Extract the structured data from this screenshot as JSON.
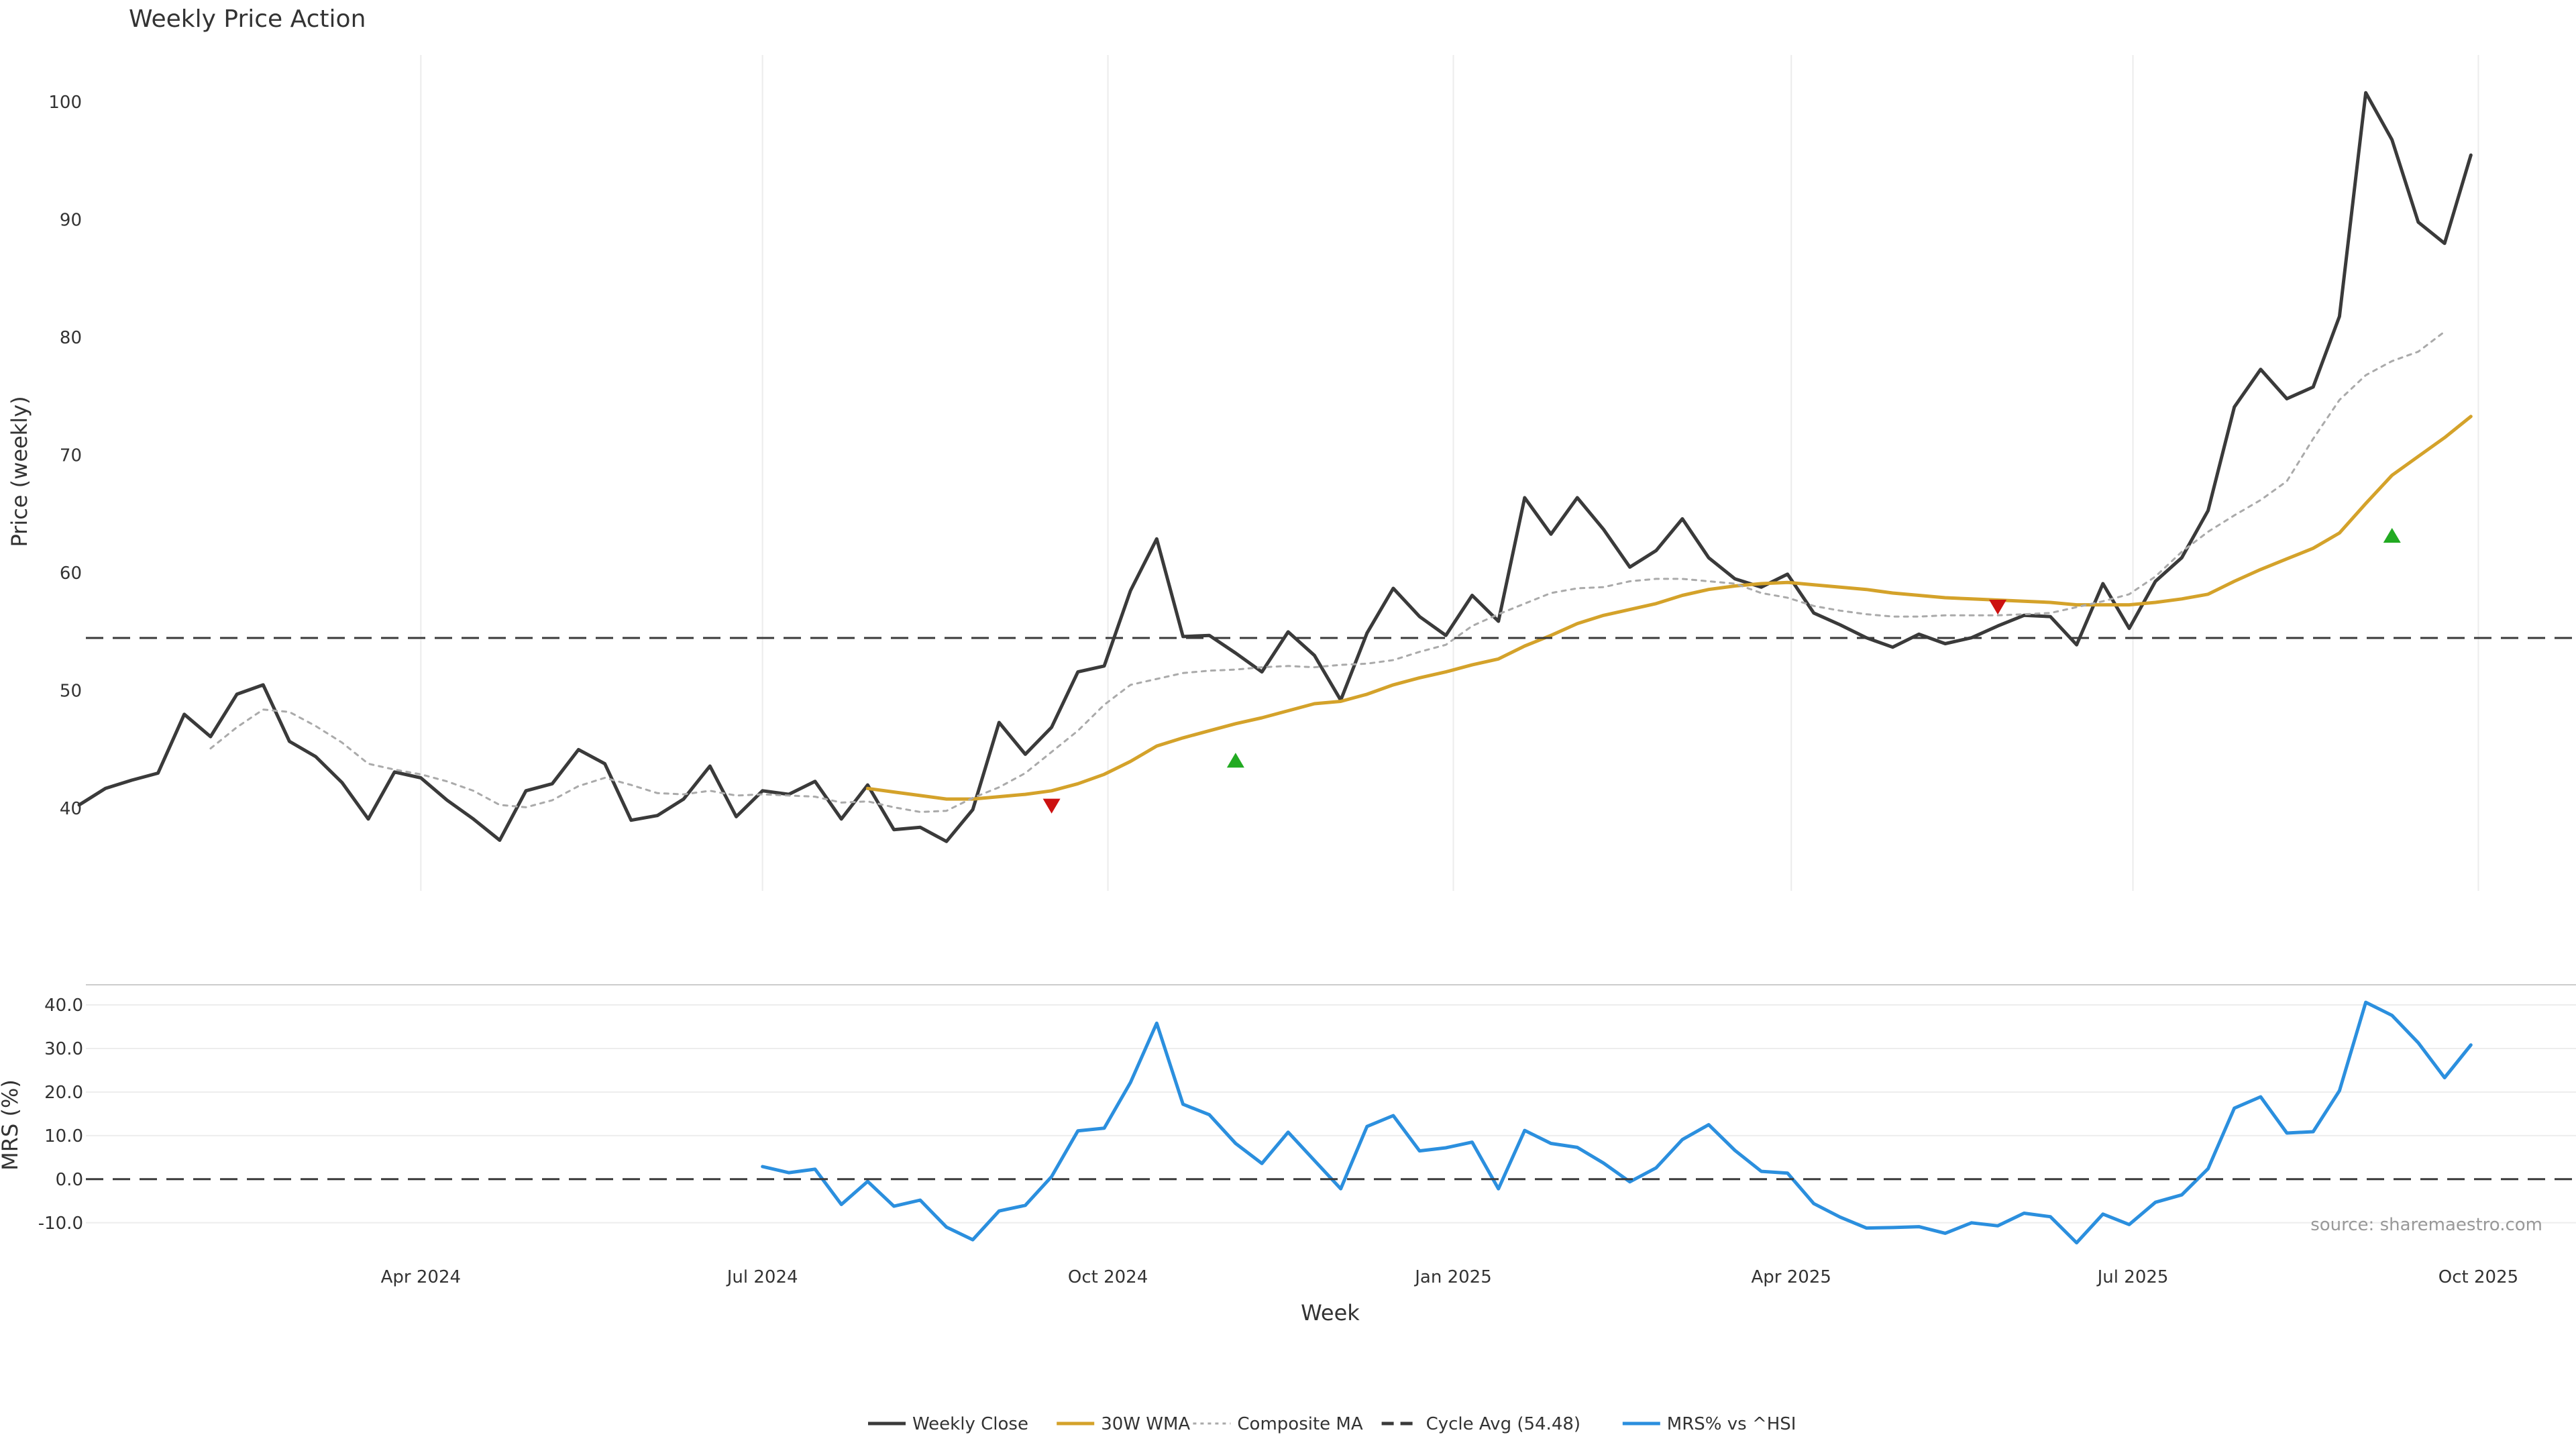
{
  "chart_data": [
    {
      "type": "line",
      "title": "Weekly Price Action",
      "ylabel": "Price (weekly)",
      "ylim": [
        33,
        104
      ],
      "yticks": [
        40,
        50,
        60,
        70,
        80,
        90,
        100
      ],
      "grid": "x",
      "x_start": "2024-01-01",
      "x_step_days": 7,
      "series": [
        {
          "name": "Weekly Close",
          "color": "#3a3a3a",
          "style": "solid",
          "offset": 0,
          "values": [
            40.3,
            41.7,
            42.4,
            43.0,
            48.0,
            46.1,
            49.7,
            50.5,
            45.7,
            44.4,
            42.2,
            39.1,
            43.1,
            42.6,
            40.7,
            39.1,
            37.3,
            41.5,
            42.1,
            45.0,
            43.8,
            39.0,
            39.4,
            40.8,
            43.6,
            39.3,
            41.5,
            41.2,
            42.3,
            39.1,
            42.0,
            38.2,
            38.4,
            37.2,
            39.9,
            47.3,
            44.6,
            46.9,
            51.6,
            52.1,
            58.5,
            62.9,
            54.6,
            54.7,
            53.2,
            51.6,
            55.0,
            53.0,
            49.2,
            54.9,
            58.7,
            56.3,
            54.7,
            58.1,
            55.9,
            66.4,
            63.3,
            66.4,
            63.7,
            60.5,
            61.9,
            64.6,
            61.3,
            59.5,
            58.8,
            59.9,
            56.6,
            55.6,
            54.5,
            53.7,
            54.8,
            54.0,
            54.5,
            55.5,
            56.4,
            56.3,
            53.9,
            59.1,
            55.3,
            59.3,
            61.3,
            65.3,
            74.1,
            77.3,
            74.8,
            75.8,
            81.8,
            100.8,
            96.8,
            89.8,
            88.0,
            95.5
          ]
        },
        {
          "name": "30W WMA",
          "color": "#d4a22a",
          "style": "solid",
          "offset": 30,
          "values": [
            41.7,
            41.4,
            41.1,
            40.8,
            40.8,
            41.0,
            41.2,
            41.5,
            42.1,
            42.9,
            44.0,
            45.3,
            46.0,
            46.6,
            47.2,
            47.7,
            48.3,
            48.9,
            49.1,
            49.7,
            50.5,
            51.1,
            51.6,
            52.2,
            52.7,
            53.8,
            54.7,
            55.7,
            56.4,
            56.9,
            57.4,
            58.1,
            58.6,
            58.9,
            59.1,
            59.2,
            59.0,
            58.8,
            58.6,
            58.3,
            58.1,
            57.9,
            57.8,
            57.7,
            57.6,
            57.5,
            57.3,
            57.3,
            57.3,
            57.5,
            57.8,
            58.2,
            59.3,
            60.3,
            61.2,
            62.1,
            63.4,
            65.9,
            68.3,
            69.9,
            71.5,
            73.3
          ]
        },
        {
          "name": "Composite MA",
          "color": "#aaaaaa",
          "style": "dotted",
          "offset": 5,
          "values": [
            45.1,
            46.9,
            48.4,
            48.2,
            47.0,
            45.6,
            43.8,
            43.3,
            42.9,
            42.3,
            41.5,
            40.3,
            40.1,
            40.7,
            41.9,
            42.6,
            42.0,
            41.3,
            41.2,
            41.5,
            41.1,
            41.2,
            41.1,
            41.0,
            40.5,
            40.6,
            40.1,
            39.7,
            39.8,
            40.9,
            41.8,
            43.0,
            44.8,
            46.6,
            48.8,
            50.5,
            51.0,
            51.5,
            51.7,
            51.8,
            52.0,
            52.1,
            52.0,
            52.2,
            52.3,
            52.6,
            53.3,
            53.9,
            55.5,
            56.5,
            57.4,
            58.3,
            58.7,
            58.8,
            59.3,
            59.5,
            59.5,
            59.3,
            59.1,
            58.3,
            57.9,
            57.2,
            56.8,
            56.5,
            56.3,
            56.3,
            56.4,
            56.4,
            56.4,
            56.5,
            56.6,
            57.1,
            57.6,
            58.2,
            59.7,
            61.8,
            63.5,
            64.9,
            66.2,
            67.8,
            71.4,
            74.7,
            76.8,
            78.0,
            78.8,
            80.5
          ]
        },
        {
          "name": "Cycle Avg (54.48)",
          "color": "#3a3a3a",
          "style": "dashed",
          "constant": 54.48
        }
      ],
      "markers": [
        {
          "kind": "sell",
          "color": "#cc1111",
          "x": "2024-09-16",
          "y": 40.2
        },
        {
          "kind": "buy",
          "color": "#22aa22",
          "x": "2024-11-04",
          "y": 44.1
        },
        {
          "kind": "sell",
          "color": "#cc1111",
          "x": "2025-05-26",
          "y": 57.1
        },
        {
          "kind": "buy",
          "color": "#22aa22",
          "x": "2025-09-08",
          "y": 63.2
        }
      ]
    },
    {
      "type": "line",
      "ylabel": "MRS (%)",
      "xlabel": "Week",
      "ylim": [
        -14.5,
        44
      ],
      "yticks": [
        -10,
        0,
        10,
        20,
        30,
        40
      ],
      "ytick_labels": [
        "-10.0",
        "0.0",
        "10.0",
        "20.0",
        "30.0",
        "40.0"
      ],
      "x_ticks": [
        {
          "label": "Apr 2024",
          "date": "2024-04-01"
        },
        {
          "label": "Jul 2024",
          "date": "2024-07-01"
        },
        {
          "label": "Oct 2024",
          "date": "2024-10-01"
        },
        {
          "label": "Jan 2025",
          "date": "2025-01-01"
        },
        {
          "label": "Apr 2025",
          "date": "2025-04-01"
        },
        {
          "label": "Jul 2025",
          "date": "2025-07-01"
        },
        {
          "label": "Oct 2025",
          "date": "2025-10-01"
        }
      ],
      "series": [
        {
          "name": "MRS% vs ^HSI",
          "color": "#2b8fde",
          "style": "solid",
          "offset": 26,
          "values": [
            2.9,
            1.5,
            2.3,
            -5.8,
            -0.5,
            -6.2,
            -4.8,
            -11.0,
            -13.9,
            -7.3,
            -6.0,
            0.6,
            11.1,
            11.7,
            22.2,
            35.8,
            17.2,
            14.8,
            8.2,
            3.6,
            10.8,
            4.3,
            -2.2,
            12.1,
            14.6,
            6.5,
            7.2,
            8.5,
            -2.2,
            11.2,
            8.2,
            7.3,
            3.7,
            -0.6,
            2.6,
            9.1,
            12.5,
            6.6,
            1.8,
            1.4,
            -5.6,
            -8.7,
            -11.2,
            -11.1,
            -10.9,
            -12.4,
            -10.0,
            -10.7,
            -7.8,
            -8.6,
            -14.6,
            -8.0,
            -10.4,
            -5.3,
            -3.6,
            2.4,
            16.3,
            18.9,
            10.6,
            10.9,
            20.3,
            40.6,
            37.6,
            31.3,
            23.3,
            30.8
          ]
        },
        {
          "name": "",
          "color": "#3a3a3a",
          "style": "dashed",
          "constant": 0
        }
      ],
      "annotation": "source: sharemaestro.com"
    }
  ]
}
